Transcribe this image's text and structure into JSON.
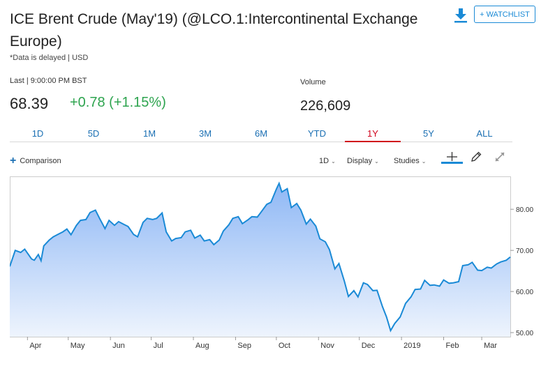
{
  "header": {
    "title": "ICE Brent Crude (May'19) (@LCO.1:Intercontinental Exchange Europe)",
    "delayed_note": "*Data is delayed | USD",
    "watchlist_label": "+ WATCHLIST",
    "download_icon": "download-arrow-icon"
  },
  "quote": {
    "last_label": "Last | 9:00:00 PM BST",
    "last_price": "68.39",
    "change": "+0.78 (+1.15%)",
    "volume_label": "Volume",
    "volume_value": "226,609",
    "change_color": "#2ea44f"
  },
  "tabs": [
    {
      "label": "1D"
    },
    {
      "label": "5D"
    },
    {
      "label": "1M"
    },
    {
      "label": "3M"
    },
    {
      "label": "6M"
    },
    {
      "label": "YTD"
    },
    {
      "label": "1Y",
      "active": true
    },
    {
      "label": "5Y"
    },
    {
      "label": "ALL"
    }
  ],
  "controls": {
    "comparison_label": "Comparison",
    "interval_label": "1D",
    "display_label": "Display",
    "studies_label": "Studies",
    "tools": [
      "crosshair-icon",
      "pencil-icon",
      "expand-icon"
    ]
  },
  "colors": {
    "accent": "#1a6fb3",
    "active_tab": "#d0021b",
    "line": "#1a8ad6",
    "fill_top": "#8fb8f5",
    "fill_bottom": "#eef4fd"
  },
  "chart_data": {
    "type": "area",
    "title": "",
    "xlabel": "",
    "ylabel": "",
    "ylim": [
      49,
      88
    ],
    "y_ticks": [
      "50.00",
      "60.00",
      "70.00",
      "80.00"
    ],
    "y_tick_values": [
      50,
      60,
      70,
      80
    ],
    "x_tick_labels": [
      "Apr",
      "May",
      "Jun",
      "Jul",
      "Aug",
      "Sep",
      "Oct",
      "Nov",
      "Dec",
      "2019",
      "Feb",
      "Mar"
    ],
    "x_tick_dates": [
      "2018-04-01",
      "2018-05-01",
      "2018-06-01",
      "2018-07-01",
      "2018-08-01",
      "2018-09-01",
      "2018-10-01",
      "2018-11-01",
      "2018-12-01",
      "2019-01-01",
      "2019-02-01",
      "2019-03-01"
    ],
    "x_range": [
      "2018-03-19",
      "2019-03-22"
    ],
    "grid": false,
    "series": [
      {
        "name": "",
        "points": [
          [
            "2018-03-19",
            66.1
          ],
          [
            "2018-03-23",
            70.0
          ],
          [
            "2018-03-27",
            69.5
          ],
          [
            "2018-03-30",
            70.3
          ],
          [
            "2018-04-04",
            67.9
          ],
          [
            "2018-04-06",
            67.6
          ],
          [
            "2018-04-09",
            69.0
          ],
          [
            "2018-04-11",
            67.5
          ],
          [
            "2018-04-13",
            71.1
          ],
          [
            "2018-04-17",
            72.5
          ],
          [
            "2018-04-20",
            73.3
          ],
          [
            "2018-04-24",
            74.0
          ],
          [
            "2018-04-27",
            74.5
          ],
          [
            "2018-04-30",
            75.2
          ],
          [
            "2018-05-03",
            73.8
          ],
          [
            "2018-05-07",
            76.1
          ],
          [
            "2018-05-10",
            77.3
          ],
          [
            "2018-05-14",
            77.5
          ],
          [
            "2018-05-17",
            79.2
          ],
          [
            "2018-05-21",
            79.8
          ],
          [
            "2018-05-24",
            77.8
          ],
          [
            "2018-05-28",
            75.3
          ],
          [
            "2018-05-31",
            77.3
          ],
          [
            "2018-06-04",
            76.1
          ],
          [
            "2018-06-07",
            77.0
          ],
          [
            "2018-06-11",
            76.3
          ],
          [
            "2018-06-14",
            75.8
          ],
          [
            "2018-06-18",
            73.9
          ],
          [
            "2018-06-21",
            73.3
          ],
          [
            "2018-06-25",
            76.8
          ],
          [
            "2018-06-28",
            77.8
          ],
          [
            "2018-07-02",
            77.5
          ],
          [
            "2018-07-05",
            77.8
          ],
          [
            "2018-07-09",
            79.1
          ],
          [
            "2018-07-12",
            74.5
          ],
          [
            "2018-07-16",
            72.3
          ],
          [
            "2018-07-19",
            72.9
          ],
          [
            "2018-07-23",
            73.1
          ],
          [
            "2018-07-26",
            74.5
          ],
          [
            "2018-07-30",
            74.9
          ],
          [
            "2018-08-02",
            73.0
          ],
          [
            "2018-08-06",
            73.7
          ],
          [
            "2018-08-09",
            72.3
          ],
          [
            "2018-08-13",
            72.6
          ],
          [
            "2018-08-16",
            71.4
          ],
          [
            "2018-08-20",
            72.5
          ],
          [
            "2018-08-23",
            74.7
          ],
          [
            "2018-08-27",
            76.2
          ],
          [
            "2018-08-30",
            77.8
          ],
          [
            "2018-09-03",
            78.2
          ],
          [
            "2018-09-06",
            76.5
          ],
          [
            "2018-09-10",
            77.4
          ],
          [
            "2018-09-13",
            78.2
          ],
          [
            "2018-09-17",
            78.1
          ],
          [
            "2018-09-20",
            79.4
          ],
          [
            "2018-09-24",
            81.2
          ],
          [
            "2018-09-27",
            81.7
          ],
          [
            "2018-10-01",
            84.9
          ],
          [
            "2018-10-03",
            86.3
          ],
          [
            "2018-10-05",
            84.2
          ],
          [
            "2018-10-09",
            85.0
          ],
          [
            "2018-10-12",
            80.4
          ],
          [
            "2018-10-16",
            81.4
          ],
          [
            "2018-10-19",
            79.8
          ],
          [
            "2018-10-23",
            76.4
          ],
          [
            "2018-10-26",
            77.6
          ],
          [
            "2018-10-30",
            75.9
          ],
          [
            "2018-11-02",
            72.8
          ],
          [
            "2018-11-06",
            72.1
          ],
          [
            "2018-11-09",
            70.2
          ],
          [
            "2018-11-13",
            65.5
          ],
          [
            "2018-11-16",
            66.8
          ],
          [
            "2018-11-20",
            62.5
          ],
          [
            "2018-11-23",
            58.8
          ],
          [
            "2018-11-27",
            60.2
          ],
          [
            "2018-11-30",
            58.7
          ],
          [
            "2018-12-04",
            62.1
          ],
          [
            "2018-12-07",
            61.7
          ],
          [
            "2018-12-11",
            60.2
          ],
          [
            "2018-12-14",
            60.3
          ],
          [
            "2018-12-18",
            56.3
          ],
          [
            "2018-12-21",
            53.8
          ],
          [
            "2018-12-24",
            50.5
          ],
          [
            "2018-12-27",
            52.2
          ],
          [
            "2018-12-31",
            53.8
          ],
          [
            "2019-01-04",
            57.1
          ],
          [
            "2019-01-08",
            58.7
          ],
          [
            "2019-01-11",
            60.5
          ],
          [
            "2019-01-15",
            60.6
          ],
          [
            "2019-01-18",
            62.7
          ],
          [
            "2019-01-22",
            61.5
          ],
          [
            "2019-01-25",
            61.6
          ],
          [
            "2019-01-29",
            61.3
          ],
          [
            "2019-02-01",
            62.8
          ],
          [
            "2019-02-05",
            62.0
          ],
          [
            "2019-02-08",
            62.1
          ],
          [
            "2019-02-12",
            62.4
          ],
          [
            "2019-02-15",
            66.3
          ],
          [
            "2019-02-19",
            66.5
          ],
          [
            "2019-02-22",
            67.1
          ],
          [
            "2019-02-26",
            65.2
          ],
          [
            "2019-03-01",
            65.1
          ],
          [
            "2019-03-05",
            65.9
          ],
          [
            "2019-03-08",
            65.7
          ],
          [
            "2019-03-12",
            66.7
          ],
          [
            "2019-03-15",
            67.2
          ],
          [
            "2019-03-19",
            67.6
          ],
          [
            "2019-03-22",
            68.4
          ]
        ]
      }
    ]
  }
}
